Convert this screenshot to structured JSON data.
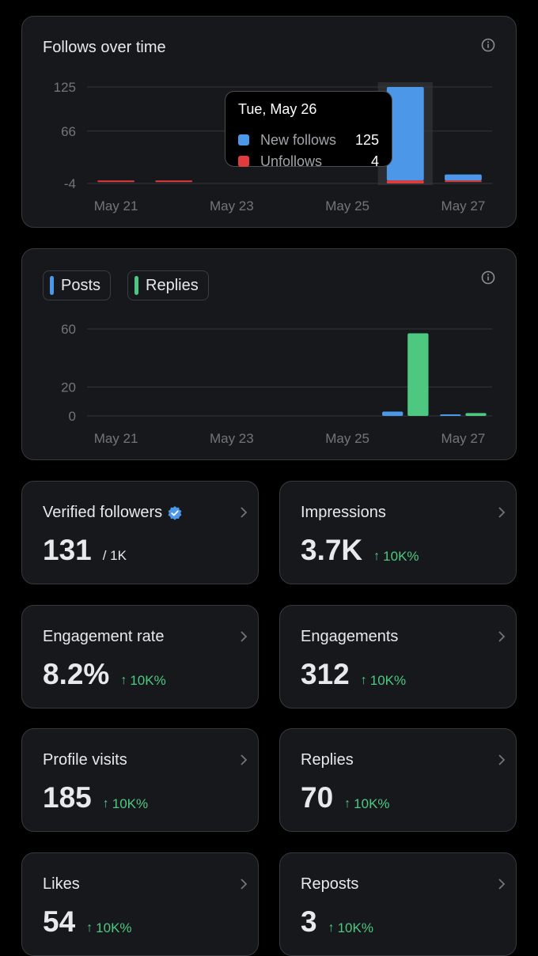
{
  "follows_chart": {
    "title": "Follows over time",
    "info_icon": "info-icon",
    "tooltip": {
      "date": "Tue, May 26",
      "rows": [
        {
          "label": "New follows",
          "value": "125",
          "color": "#4d97e8"
        },
        {
          "label": "Unfollows",
          "value": "4",
          "color": "#e23b3b"
        }
      ]
    }
  },
  "activity_chart": {
    "legend": [
      {
        "label": "Posts",
        "color": "#4d97e8"
      },
      {
        "label": "Replies",
        "color": "#4ec880"
      }
    ]
  },
  "chart_data": [
    {
      "type": "bar",
      "title": "Follows over time",
      "x_tick_labels": [
        "May 21",
        "May 23",
        "May 25",
        "May 27"
      ],
      "y_tick_labels": [
        "125",
        "66",
        "-4"
      ],
      "ylim": [
        -4,
        125
      ],
      "categories": [
        "May 21",
        "May 22",
        "May 23",
        "May 24",
        "May 25",
        "May 26",
        "May 27"
      ],
      "series": [
        {
          "name": "New follows",
          "color": "#4d97e8",
          "values": [
            0,
            0,
            0,
            0,
            0,
            125,
            8
          ]
        },
        {
          "name": "Unfollows",
          "color": "#e23b3b",
          "values": [
            1,
            1,
            0,
            0,
            0,
            4,
            1
          ]
        }
      ],
      "highlight": "May 26",
      "grid": true
    },
    {
      "type": "bar",
      "x_tick_labels": [
        "May 21",
        "May 23",
        "May 25",
        "May 27"
      ],
      "y_tick_labels": [
        "60",
        "20",
        "0"
      ],
      "ylim": [
        0,
        60
      ],
      "categories": [
        "May 21",
        "May 22",
        "May 23",
        "May 24",
        "May 25",
        "May 26",
        "May 27"
      ],
      "series": [
        {
          "name": "Posts",
          "color": "#4d97e8",
          "values": [
            0,
            0,
            0,
            0,
            0,
            3,
            1
          ]
        },
        {
          "name": "Replies",
          "color": "#4ec880",
          "values": [
            0,
            0,
            0,
            0,
            0,
            57,
            2
          ]
        }
      ],
      "grid": true
    }
  ],
  "stats": [
    {
      "label": "Verified followers",
      "value": "131",
      "sub": "/ 1K",
      "delta": "",
      "badge": "verified-badge-icon"
    },
    {
      "label": "Impressions",
      "value": "3.7K",
      "sub": "",
      "delta": "10K%"
    },
    {
      "label": "Engagement rate",
      "value": "8.2%",
      "sub": "",
      "delta": "10K%"
    },
    {
      "label": "Engagements",
      "value": "312",
      "sub": "",
      "delta": "10K%"
    },
    {
      "label": "Profile visits",
      "value": "185",
      "sub": "",
      "delta": "10K%"
    },
    {
      "label": "Replies",
      "value": "70",
      "sub": "",
      "delta": "10K%"
    },
    {
      "label": "Likes",
      "value": "54",
      "sub": "",
      "delta": "10K%"
    },
    {
      "label": "Reposts",
      "value": "3",
      "sub": "",
      "delta": "10K%"
    }
  ],
  "colors": {
    "accent": "#4d97e8",
    "positive": "#4ec880",
    "negative": "#e23b3b"
  }
}
